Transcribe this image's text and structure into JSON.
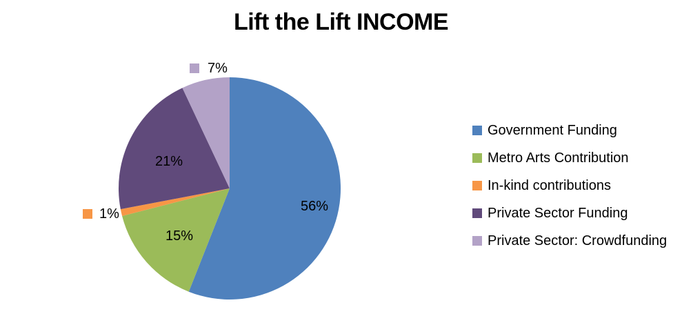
{
  "title": "Lift the Lift INCOME",
  "background_color": "#FFFFFF",
  "text_color": "#000000",
  "chart_data": {
    "type": "pie",
    "title": "Lift the Lift INCOME",
    "categories": [
      "Government Funding",
      "Metro Arts Contribution",
      "In-kind contributions",
      "Private Sector Funding",
      "Private Sector: Crowdfunding"
    ],
    "values": [
      56,
      15,
      1,
      21,
      7
    ],
    "unit": "percent",
    "labels": [
      "56%",
      "15%",
      "1%",
      "21%",
      "7%"
    ],
    "colors": [
      "#4F81BD",
      "#9BBB59",
      "#F79646",
      "#604A7B",
      "#B3A2C7"
    ],
    "start_angle_deg": 0,
    "direction": "clockwise",
    "legend_position": "right",
    "label_placement": "large slices labeled inside; 1% and 7% labeled outside with legend key swatches",
    "grid": false
  }
}
